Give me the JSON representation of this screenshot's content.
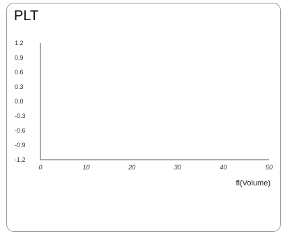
{
  "panel": {
    "title": "PLT"
  },
  "chart_data": {
    "type": "line",
    "title": "",
    "xlabel": "fl(Volume)",
    "ylabel": "",
    "x_ticks": [
      "0",
      "10",
      "20",
      "30",
      "40",
      "50"
    ],
    "y_ticks": [
      "1.2",
      "0.9",
      "0.6",
      "0.3",
      "0.0",
      "-0.3",
      "-0.6",
      "-0.9",
      "-1.2"
    ],
    "xlim": [
      0,
      50
    ],
    "ylim": [
      -1.2,
      1.2
    ],
    "grid": false,
    "series": []
  }
}
